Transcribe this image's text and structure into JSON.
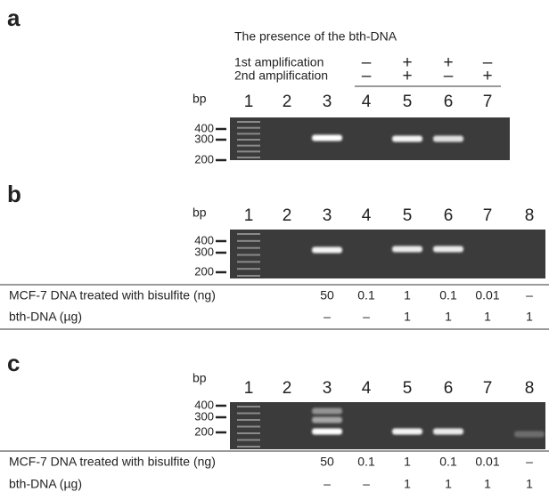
{
  "panels": [
    {
      "label": "a",
      "title": "The presence of the bth-DNA",
      "conditions": [
        {
          "label": "1st amplification",
          "cells": [
            "–",
            "+",
            "+",
            "–"
          ]
        },
        {
          "label": "2nd amplification",
          "cells": [
            "–",
            "+",
            "–",
            "+"
          ]
        }
      ],
      "unit": "bp",
      "lanes": [
        "1",
        "2",
        "3",
        "4",
        "5",
        "6",
        "7"
      ],
      "markers": [
        "400",
        "300",
        "200"
      ]
    },
    {
      "label": "b",
      "unit": "bp",
      "lanes": [
        "1",
        "2",
        "3",
        "4",
        "5",
        "6",
        "7",
        "8"
      ],
      "markers": [
        "400",
        "300",
        "200"
      ],
      "rows": [
        {
          "label": "MCF-7 DNA treated with bisulfite (ng)",
          "cells": [
            "50",
            "0.1",
            "1",
            "0.1",
            "0.01",
            "–"
          ]
        },
        {
          "label": "bth-DNA (µg)",
          "cells": [
            "–",
            "–",
            "1",
            "1",
            "1",
            "1"
          ]
        }
      ]
    },
    {
      "label": "c",
      "unit": "bp",
      "lanes": [
        "1",
        "2",
        "3",
        "4",
        "5",
        "6",
        "7",
        "8"
      ],
      "markers": [
        "400",
        "300",
        "200"
      ],
      "rows": [
        {
          "label": "MCF-7 DNA treated with bisulfite (ng)",
          "cells": [
            "50",
            "0.1",
            "1",
            "0.1",
            "0.01",
            "–"
          ]
        },
        {
          "label": "bth-DNA (µg)",
          "cells": [
            "–",
            "–",
            "1",
            "1",
            "1",
            "1"
          ]
        }
      ]
    }
  ]
}
